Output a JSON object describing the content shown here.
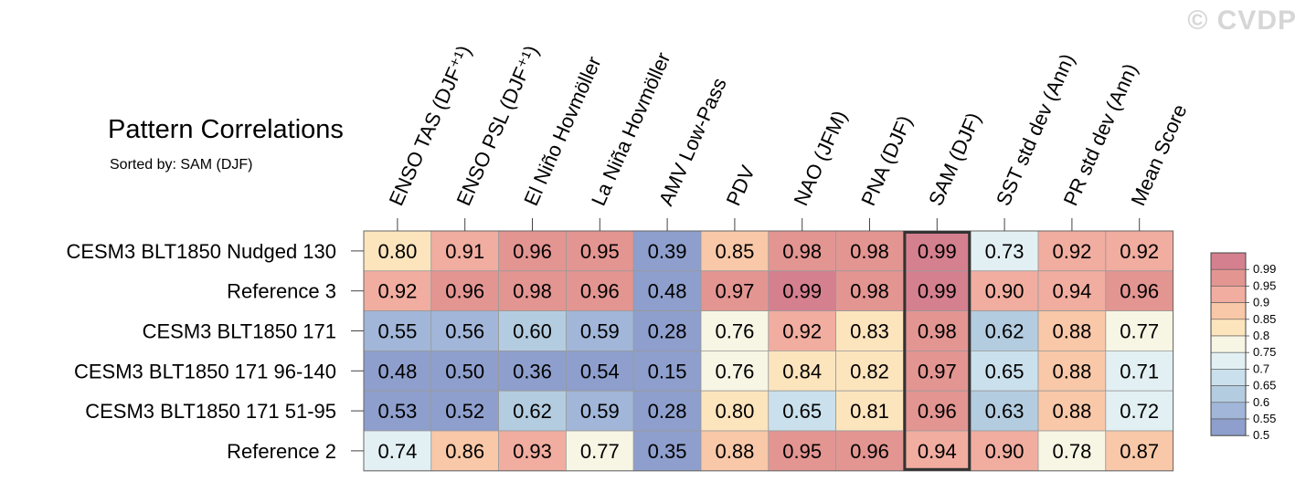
{
  "watermark": "© CVDP",
  "chart_data": {
    "type": "heatmap",
    "title": "Pattern Correlations",
    "subtitle": "Sorted by: SAM (DJF)",
    "columns": [
      "ENSO TAS (DJF⁺¹)",
      "ENSO PSL (DJF⁺¹)",
      "El Niño Hovmöller",
      "La Niña Hovmöller",
      "AMV Low-Pass",
      "PDV",
      "NAO (JFM)",
      "PNA (DJF)",
      "SAM (DJF)",
      "SST std dev (Ann)",
      "PR std dev (Ann)",
      "Mean Score"
    ],
    "rows": [
      "CESM3 BLT1850 Nudged 130",
      "Reference 3",
      "CESM3 BLT1850 171",
      "CESM3 BLT1850 171 96-140",
      "CESM3 BLT1850 171 51-95",
      "Reference 2"
    ],
    "values": [
      [
        "0.80",
        "0.91",
        "0.96",
        "0.95",
        "0.39",
        "0.85",
        "0.98",
        "0.98",
        "0.99",
        "0.73",
        "0.92",
        "0.92"
      ],
      [
        "0.92",
        "0.96",
        "0.98",
        "0.96",
        "0.48",
        "0.97",
        "0.99",
        "0.98",
        "0.99",
        "0.90",
        "0.94",
        "0.96"
      ],
      [
        "0.55",
        "0.56",
        "0.60",
        "0.59",
        "0.28",
        "0.76",
        "0.92",
        "0.83",
        "0.98",
        "0.62",
        "0.88",
        "0.77"
      ],
      [
        "0.48",
        "0.50",
        "0.36",
        "0.54",
        "0.15",
        "0.76",
        "0.84",
        "0.82",
        "0.97",
        "0.65",
        "0.88",
        "0.71"
      ],
      [
        "0.53",
        "0.52",
        "0.62",
        "0.59",
        "0.28",
        "0.80",
        "0.65",
        "0.81",
        "0.96",
        "0.63",
        "0.88",
        "0.72"
      ],
      [
        "0.74",
        "0.86",
        "0.93",
        "0.77",
        "0.35",
        "0.88",
        "0.95",
        "0.96",
        "0.94",
        "0.90",
        "0.78",
        "0.87"
      ]
    ],
    "sorted_by_column": "SAM (DJF)",
    "colorbar": {
      "labels": [
        "0.99",
        "0.95",
        "0.9",
        "0.85",
        "0.8",
        "0.75",
        "0.7",
        "0.65",
        "0.6",
        "0.55",
        "0.5"
      ],
      "thresholds": [
        0.99,
        0.95,
        0.9,
        0.85,
        0.8,
        0.75,
        0.7,
        0.65,
        0.6,
        0.55,
        0.5
      ],
      "colors": [
        "#d5808f",
        "#e39592",
        "#f1ada0",
        "#f8c8a8",
        "#fce4bd",
        "#f7f5e4",
        "#e3f0f3",
        "#cae0ec",
        "#b4ccdf",
        "#a1b6d8",
        "#8e9fcd"
      ]
    }
  }
}
